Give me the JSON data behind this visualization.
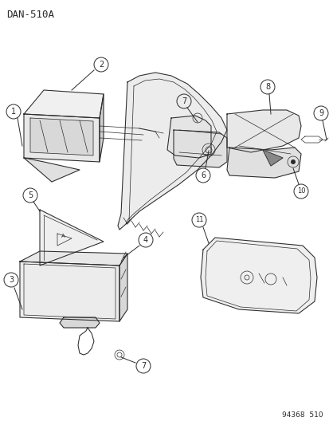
{
  "title": "DAN-510A",
  "footer": "94368  510",
  "bg_color": "#ffffff",
  "text_color": "#1a1a1a",
  "line_color": "#2a2a2a",
  "title_fontsize": 9,
  "footer_fontsize": 6.5,
  "figsize": [
    4.14,
    5.33
  ],
  "dpi": 100
}
